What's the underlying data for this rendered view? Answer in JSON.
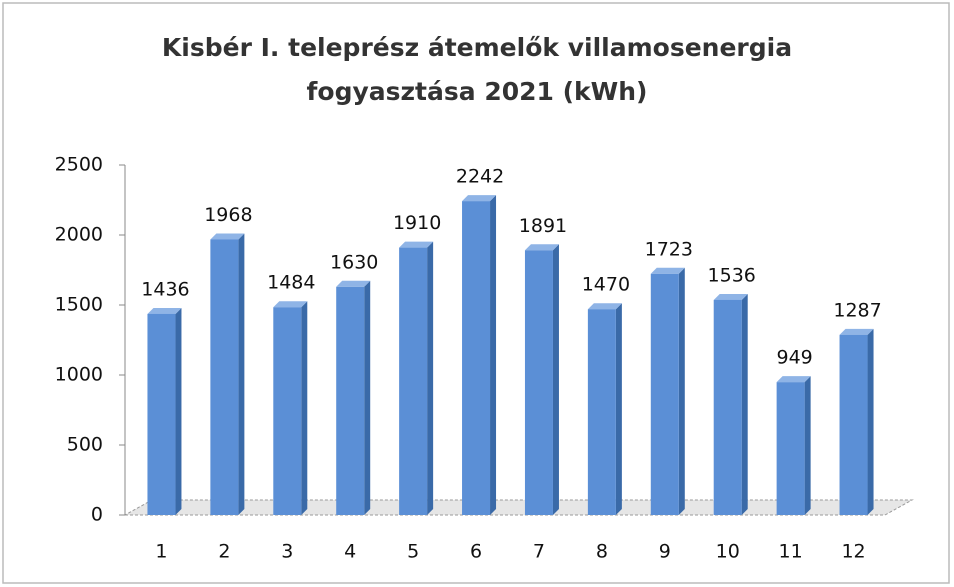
{
  "chart_data": {
    "type": "bar",
    "title": "Kisbér I. teleprész átemelők villamosenergia fogyasztása 2021 (kWh)",
    "categories": [
      1,
      2,
      3,
      4,
      5,
      6,
      7,
      8,
      9,
      10,
      11,
      12
    ],
    "values": [
      1436,
      1968,
      1484,
      1630,
      1910,
      2242,
      1891,
      1470,
      1723,
      1536,
      949,
      1287
    ],
    "color": "#5b8fd6",
    "ylim": [
      0,
      2500
    ],
    "yticks": [
      0,
      500,
      1000,
      1500,
      2000,
      2500
    ],
    "grid": false
  }
}
